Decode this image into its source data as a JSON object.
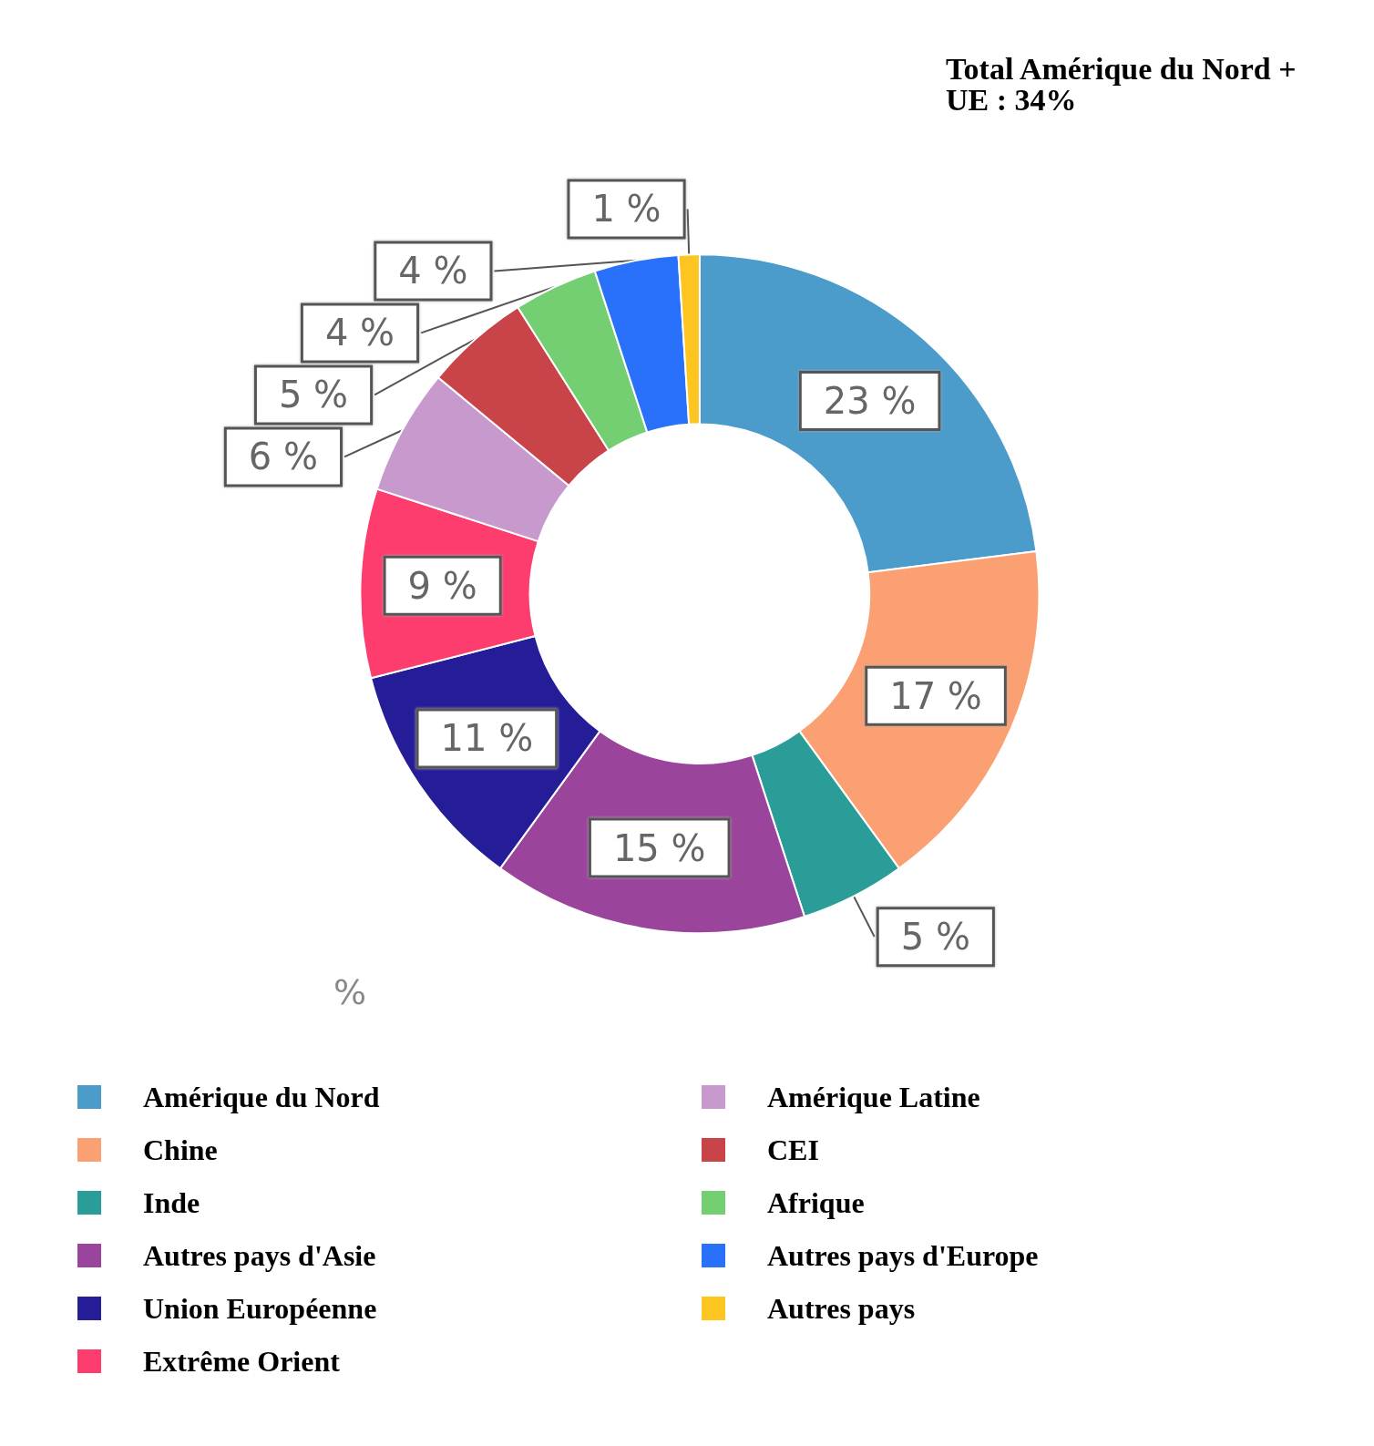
{
  "chart_data": {
    "type": "donut",
    "categories": [
      "Amérique du Nord",
      "Chine",
      "Inde",
      "Autres pays d'Asie",
      "Union Européenne",
      "Extrême Orient",
      "Amérique Latine",
      "CEI",
      "Afrique",
      "Autres pays d'Europe",
      "Autres pays"
    ],
    "values": [
      23,
      17,
      5,
      15,
      11,
      9,
      6,
      5,
      4,
      4,
      1
    ],
    "value_labels": [
      "23 %",
      "17 %",
      "5 %",
      "15 %",
      "11 %",
      "9 %",
      "6 %",
      "5 %",
      "4 %",
      "4 %",
      "1 %"
    ],
    "colors": [
      "#4b9ccb",
      "#fba072",
      "#2a9d98",
      "#9b449c",
      "#251c98",
      "#fc3d6e",
      "#c899cc",
      "#c84449",
      "#74cf72",
      "#2970fb",
      "#fcc520"
    ],
    "annotations": [
      "Total Amérique du Nord +\nUE : 34%",
      "%"
    ],
    "legend": "bottom"
  }
}
